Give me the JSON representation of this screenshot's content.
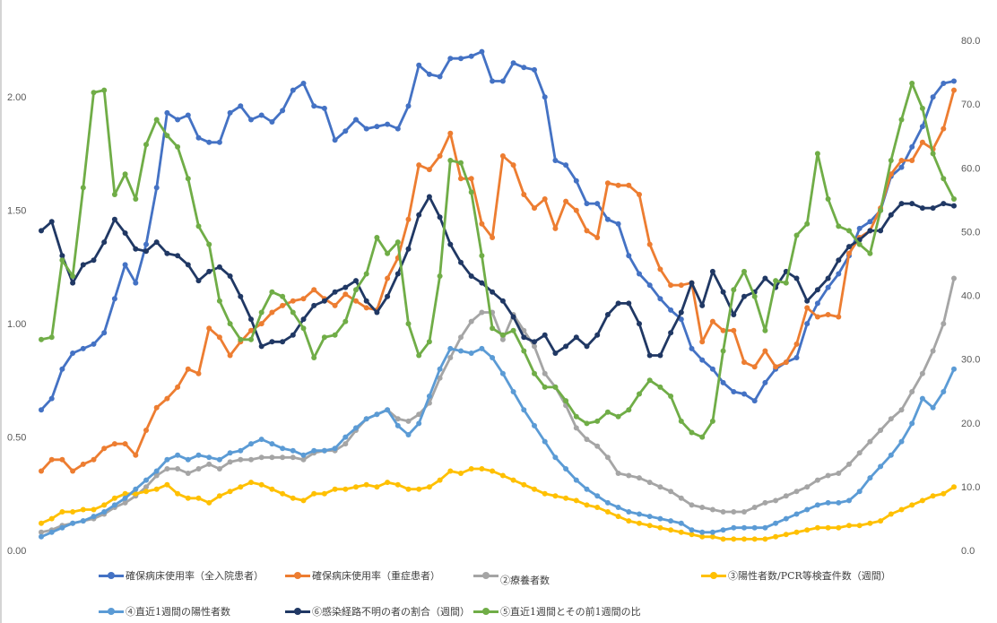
{
  "chart_data": {
    "type": "line",
    "title": "",
    "xlabel": "",
    "ylabel": "",
    "ylim": [
      0,
      2.25
    ],
    "y2lim": [
      0,
      80
    ],
    "yticks": [
      "0.00",
      "0.50",
      "1.00",
      "1.50",
      "2.00"
    ],
    "y2ticks": [
      "0.0",
      "10.0",
      "20.0",
      "30.0",
      "40.0",
      "50.0",
      "60.0",
      "70.0",
      "80.0"
    ],
    "grid": false,
    "legend_position": "bottom",
    "series": [
      {
        "name": "確保病床使用率（全入院患者）",
        "color": "#4472c4",
        "values": [
          0.62,
          0.67,
          0.8,
          0.87,
          0.89,
          0.91,
          0.96,
          1.11,
          1.26,
          1.18,
          1.35,
          1.6,
          1.93,
          1.9,
          1.92,
          1.82,
          1.8,
          1.8,
          1.93,
          1.96,
          1.9,
          1.92,
          1.89,
          1.94,
          2.03,
          2.06,
          1.96,
          1.95,
          1.81,
          1.85,
          1.9,
          1.86,
          1.87,
          1.88,
          1.86,
          1.96,
          2.14,
          2.1,
          2.09,
          2.17,
          2.17,
          2.18,
          2.2,
          2.07,
          2.07,
          2.15,
          2.13,
          2.12,
          2.0,
          1.72,
          1.7,
          1.63,
          1.53,
          1.53,
          1.46,
          1.44,
          1.3,
          1.22,
          1.17,
          1.11,
          1.06,
          1.02,
          0.89,
          0.84,
          0.8,
          0.74,
          0.7,
          0.69,
          0.66,
          0.74,
          0.8,
          0.83,
          0.85,
          1.0,
          1.09,
          1.16,
          1.22,
          1.3,
          1.42,
          1.45,
          1.5,
          1.65,
          1.69,
          1.78,
          1.87,
          2.0,
          2.06,
          2.07
        ]
      },
      {
        "name": "確保病床使用率（重症患者）",
        "color": "#ed7d31",
        "values": [
          0.35,
          0.4,
          0.4,
          0.35,
          0.38,
          0.4,
          0.45,
          0.47,
          0.47,
          0.42,
          0.53,
          0.63,
          0.67,
          0.72,
          0.8,
          0.78,
          0.98,
          0.94,
          0.86,
          0.92,
          0.97,
          1.0,
          1.05,
          1.08,
          1.1,
          1.11,
          1.15,
          1.11,
          1.08,
          1.13,
          1.1,
          1.07,
          1.06,
          1.2,
          1.29,
          1.46,
          1.7,
          1.68,
          1.74,
          1.84,
          1.64,
          1.64,
          1.44,
          1.38,
          1.74,
          1.7,
          1.57,
          1.51,
          1.55,
          1.42,
          1.54,
          1.5,
          1.41,
          1.38,
          1.62,
          1.61,
          1.61,
          1.57,
          1.35,
          1.24,
          1.17,
          1.17,
          1.18,
          0.92,
          1.01,
          0.97,
          0.97,
          0.83,
          0.81,
          0.88,
          0.81,
          0.83,
          0.91,
          1.07,
          1.03,
          1.04,
          1.03,
          1.31,
          1.38,
          1.41,
          1.51,
          1.66,
          1.72,
          1.72,
          1.8,
          1.77,
          1.86,
          2.03
        ]
      },
      {
        "name": "②療養者数",
        "color": "#a5a5a5",
        "values": [
          0.08,
          0.09,
          0.11,
          0.12,
          0.13,
          0.14,
          0.16,
          0.19,
          0.21,
          0.24,
          0.28,
          0.33,
          0.36,
          0.36,
          0.34,
          0.36,
          0.38,
          0.36,
          0.39,
          0.4,
          0.4,
          0.41,
          0.41,
          0.41,
          0.41,
          0.4,
          0.43,
          0.44,
          0.44,
          0.47,
          0.53,
          0.58,
          0.6,
          0.62,
          0.58,
          0.57,
          0.6,
          0.65,
          0.76,
          0.85,
          0.94,
          1.01,
          1.05,
          1.05,
          0.93,
          1.04,
          0.97,
          0.9,
          0.78,
          0.72,
          0.64,
          0.54,
          0.49,
          0.46,
          0.41,
          0.34,
          0.33,
          0.32,
          0.3,
          0.28,
          0.26,
          0.23,
          0.2,
          0.19,
          0.18,
          0.17,
          0.17,
          0.17,
          0.19,
          0.21,
          0.22,
          0.24,
          0.26,
          0.28,
          0.31,
          0.33,
          0.34,
          0.38,
          0.43,
          0.48,
          0.53,
          0.58,
          0.62,
          0.7,
          0.78,
          0.88,
          1.0,
          1.2
        ]
      },
      {
        "name": "③陽性者数/PCR等検査件数（週間）",
        "color": "#ffc000",
        "values": [
          0.12,
          0.14,
          0.17,
          0.17,
          0.18,
          0.18,
          0.2,
          0.23,
          0.25,
          0.25,
          0.26,
          0.27,
          0.29,
          0.25,
          0.23,
          0.23,
          0.21,
          0.24,
          0.26,
          0.28,
          0.3,
          0.29,
          0.27,
          0.25,
          0.23,
          0.22,
          0.25,
          0.25,
          0.27,
          0.27,
          0.28,
          0.29,
          0.28,
          0.3,
          0.29,
          0.27,
          0.27,
          0.28,
          0.31,
          0.35,
          0.34,
          0.36,
          0.36,
          0.35,
          0.33,
          0.31,
          0.29,
          0.27,
          0.25,
          0.24,
          0.23,
          0.22,
          0.2,
          0.19,
          0.17,
          0.15,
          0.13,
          0.12,
          0.11,
          0.1,
          0.09,
          0.08,
          0.07,
          0.06,
          0.06,
          0.05,
          0.05,
          0.05,
          0.05,
          0.05,
          0.06,
          0.07,
          0.08,
          0.09,
          0.1,
          0.1,
          0.1,
          0.11,
          0.11,
          0.12,
          0.13,
          0.16,
          0.18,
          0.2,
          0.22,
          0.24,
          0.25,
          0.28
        ]
      },
      {
        "name": "④直近1週間の陽性者数",
        "color": "#5b9bd5",
        "values": [
          0.06,
          0.08,
          0.1,
          0.12,
          0.13,
          0.15,
          0.17,
          0.2,
          0.23,
          0.27,
          0.31,
          0.35,
          0.4,
          0.42,
          0.4,
          0.42,
          0.41,
          0.4,
          0.43,
          0.44,
          0.47,
          0.49,
          0.47,
          0.45,
          0.44,
          0.42,
          0.44,
          0.44,
          0.45,
          0.5,
          0.54,
          0.58,
          0.6,
          0.62,
          0.55,
          0.51,
          0.56,
          0.68,
          0.8,
          0.89,
          0.88,
          0.87,
          0.89,
          0.85,
          0.78,
          0.7,
          0.62,
          0.55,
          0.48,
          0.41,
          0.36,
          0.31,
          0.27,
          0.24,
          0.21,
          0.19,
          0.17,
          0.16,
          0.15,
          0.14,
          0.13,
          0.12,
          0.09,
          0.08,
          0.08,
          0.09,
          0.1,
          0.1,
          0.1,
          0.1,
          0.12,
          0.14,
          0.16,
          0.18,
          0.2,
          0.21,
          0.21,
          0.22,
          0.26,
          0.32,
          0.37,
          0.42,
          0.48,
          0.56,
          0.67,
          0.63,
          0.7,
          0.8
        ]
      },
      {
        "name": "⑥感染経路不明の者の割合（週間）",
        "color": "#203864",
        "values": [
          1.41,
          1.45,
          1.3,
          1.18,
          1.26,
          1.28,
          1.36,
          1.46,
          1.4,
          1.33,
          1.32,
          1.36,
          1.31,
          1.3,
          1.26,
          1.19,
          1.23,
          1.25,
          1.21,
          1.12,
          1.02,
          0.9,
          0.92,
          0.92,
          0.95,
          1.02,
          1.08,
          1.1,
          1.14,
          1.16,
          1.19,
          1.1,
          1.05,
          1.12,
          1.22,
          1.33,
          1.48,
          1.56,
          1.47,
          1.35,
          1.27,
          1.21,
          1.18,
          1.14,
          1.1,
          1.03,
          0.94,
          0.92,
          0.95,
          0.87,
          0.9,
          0.94,
          0.9,
          0.95,
          1.04,
          1.09,
          1.09,
          1.0,
          0.86,
          0.86,
          0.96,
          1.05,
          1.18,
          1.08,
          1.23,
          1.14,
          1.04,
          1.12,
          1.14,
          1.2,
          1.16,
          1.23,
          1.2,
          1.1,
          1.15,
          1.2,
          1.28,
          1.34,
          1.37,
          1.41,
          1.41,
          1.48,
          1.53,
          1.53,
          1.51,
          1.51,
          1.53,
          1.52
        ]
      },
      {
        "name": "⑤直近1週間とその前1週間の比",
        "color": "#70ad47",
        "values": [
          0.93,
          0.94,
          1.28,
          1.21,
          1.6,
          2.02,
          2.03,
          1.57,
          1.66,
          1.55,
          1.79,
          1.9,
          1.83,
          1.78,
          1.64,
          1.43,
          1.35,
          1.1,
          1.0,
          0.93,
          0.93,
          1.05,
          1.14,
          1.12,
          1.05,
          0.98,
          0.85,
          0.94,
          0.95,
          1.01,
          1.15,
          1.22,
          1.38,
          1.31,
          1.36,
          1.0,
          0.86,
          0.92,
          1.21,
          1.72,
          1.71,
          1.58,
          1.3,
          0.98,
          0.95,
          0.97,
          0.88,
          0.78,
          0.72,
          0.72,
          0.66,
          0.59,
          0.56,
          0.57,
          0.61,
          0.59,
          0.62,
          0.69,
          0.75,
          0.72,
          0.68,
          0.57,
          0.52,
          0.5,
          0.57,
          0.88,
          1.15,
          1.23,
          1.12,
          0.97,
          1.19,
          1.18,
          1.39,
          1.44,
          1.75,
          1.55,
          1.43,
          1.41,
          1.35,
          1.31,
          1.5,
          1.72,
          1.9,
          2.06,
          1.95,
          1.75,
          1.64,
          1.55
        ]
      }
    ]
  },
  "legend": [
    {
      "label": "確保病床使用率（全入院患者）",
      "color": "#4472c4"
    },
    {
      "label": "確保病床使用率（重症患者）",
      "color": "#ed7d31"
    },
    {
      "label": "②療養者数",
      "color": "#a5a5a5"
    },
    {
      "label": "③陽性者数/PCR等検査件数（週間）",
      "color": "#ffc000"
    },
    {
      "label": "④直近1週間の陽性者数",
      "color": "#5b9bd5"
    },
    {
      "label": "⑥感染経路不明の者の割合（週間）",
      "color": "#203864"
    },
    {
      "label": "⑤直近1週間とその前1週間の比",
      "color": "#70ad47"
    }
  ]
}
